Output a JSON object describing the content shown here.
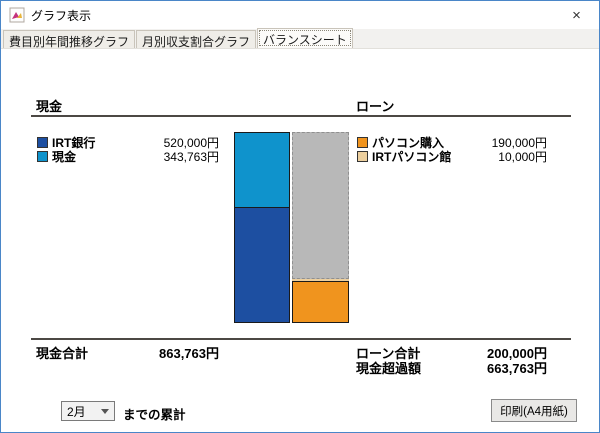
{
  "window": {
    "title": "グラフ表示",
    "close_glyph": "×"
  },
  "tabs": [
    {
      "label": "費目別年間推移グラフ",
      "selected": false
    },
    {
      "label": "月別収支割合グラフ",
      "selected": false
    },
    {
      "label": "バランスシート",
      "selected": true
    }
  ],
  "cash_section": {
    "header": "現金",
    "items": [
      {
        "label": "IRT銀行",
        "value": "520,000円",
        "color": "#1d4fa1"
      },
      {
        "label": "現金",
        "value": "343,763円",
        "color": "#0f93cc"
      }
    ],
    "total_label": "現金合計",
    "total_value": "863,763円"
  },
  "loan_section": {
    "header": "ローン",
    "items": [
      {
        "label": "パソコン購入",
        "value": "190,000円",
        "color": "#f0941e"
      },
      {
        "label": "IRTパソコン館",
        "value": "10,000円",
        "color": "#eccf9e"
      }
    ],
    "total_label": "ローン合計",
    "total_value": "200,000円",
    "excess_label": "現金超過額",
    "excess_value": "663,763円"
  },
  "chart_data": {
    "type": "bar",
    "stacked": true,
    "title": "バランスシート",
    "bars": [
      {
        "name": "現金",
        "total": 863763,
        "segments": [
          {
            "label": "現金",
            "value": 343763,
            "color": "#0f93cc",
            "border": "solid"
          },
          {
            "label": "IRT銀行",
            "value": 520000,
            "color": "#1d4fa1",
            "border": "solid"
          }
        ]
      },
      {
        "name": "ローン",
        "total": 863763,
        "segments": [
          {
            "label": "現金超過額",
            "value": 663763,
            "color": "#b8b8b8",
            "border": "dashed"
          },
          {
            "label": "IRTパソコン館",
            "value": 10000,
            "color": "#eccf9e",
            "border": "none"
          },
          {
            "label": "パソコン購入",
            "value": 190000,
            "color": "#f0941e",
            "border": "solid"
          }
        ]
      }
    ],
    "totals": {
      "cash": 863763,
      "loan": 200000,
      "excess": 663763
    }
  },
  "footer": {
    "month_select": "2月",
    "cumulative_label": "までの累計",
    "print_button": "印刷(A4用紙)"
  }
}
